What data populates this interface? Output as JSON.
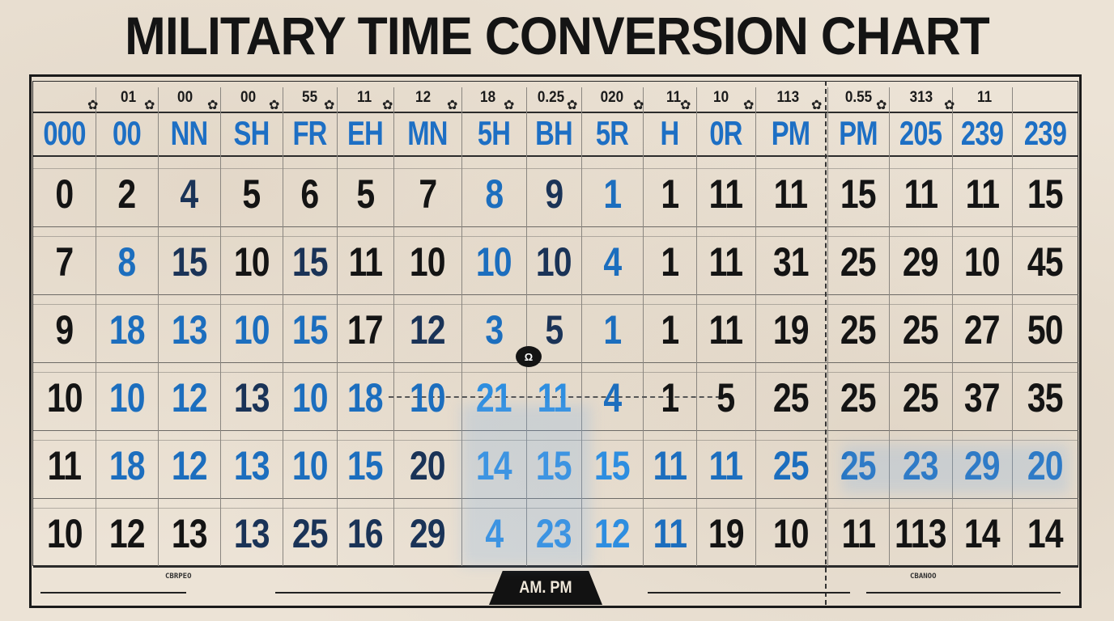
{
  "title": "MILITARY TIME CONVERSION CHART",
  "top_ticks": [
    "01",
    "00",
    "00",
    "55",
    "11",
    "12",
    "18",
    "0.25",
    "020",
    "11",
    "10",
    "113",
    "0.55",
    "313",
    "11"
  ],
  "headers": [
    "000",
    "00",
    "NN",
    "SH",
    "FR",
    "EH",
    "MN",
    "5H",
    "BH",
    "5R",
    "H",
    "0R",
    "PM",
    "PM",
    "205",
    "239",
    "239"
  ],
  "rows": [
    [
      "0",
      "2",
      "4",
      "5",
      "6",
      "5",
      "7",
      "8",
      "9",
      "1",
      "1",
      "11",
      "11",
      "15",
      "11",
      "11",
      "15"
    ],
    [
      "7",
      "8",
      "15",
      "10",
      "15",
      "11",
      "10",
      "10",
      "10",
      "4",
      "1",
      "11",
      "31",
      "25",
      "29",
      "10",
      "45"
    ],
    [
      "9",
      "18",
      "13",
      "10",
      "15",
      "17",
      "12",
      "3",
      "5",
      "1",
      "1",
      "11",
      "19",
      "25",
      "25",
      "27",
      "50"
    ],
    [
      "10",
      "10",
      "12",
      "13",
      "10",
      "18",
      "10",
      "21",
      "11",
      "4",
      "1",
      "5",
      "25",
      "25",
      "25",
      "37",
      "35"
    ],
    [
      "11",
      "18",
      "12",
      "13",
      "10",
      "15",
      "20",
      "14",
      "15",
      "15",
      "11",
      "11",
      "25",
      "25",
      "23",
      "29",
      "20"
    ],
    [
      "10",
      "12",
      "13",
      "13",
      "25",
      "16",
      "29",
      "4",
      "23",
      "12",
      "11",
      "19",
      "10",
      "11",
      "113",
      "14",
      "14"
    ]
  ],
  "row_colors": [
    [
      "black",
      "black",
      "navy",
      "black",
      "black",
      "black",
      "black",
      "blue",
      "navy",
      "blue",
      "black",
      "black",
      "black",
      "black",
      "black",
      "black",
      "black"
    ],
    [
      "black",
      "blue",
      "navy",
      "black",
      "navy",
      "black",
      "black",
      "blue",
      "navy",
      "blue",
      "black",
      "black",
      "black",
      "black",
      "black",
      "black",
      "black"
    ],
    [
      "black",
      "blue",
      "blue",
      "blue",
      "blue",
      "black",
      "navy",
      "blue",
      "navy",
      "blue",
      "black",
      "black",
      "black",
      "black",
      "black",
      "black",
      "black"
    ],
    [
      "black",
      "blue",
      "blue",
      "navy",
      "blue",
      "blue",
      "blue",
      "light",
      "light",
      "blue",
      "black",
      "black",
      "black",
      "black",
      "black",
      "black",
      "black"
    ],
    [
      "black",
      "blue",
      "blue",
      "blue",
      "blue",
      "blue",
      "navy",
      "light",
      "light",
      "light",
      "blue",
      "blue",
      "blue",
      "blue",
      "blue",
      "blue",
      "blue"
    ],
    [
      "black",
      "black",
      "black",
      "navy",
      "navy",
      "navy",
      "navy",
      "light",
      "light",
      "light",
      "blue",
      "black",
      "black",
      "black",
      "black",
      "black",
      "black"
    ]
  ],
  "footer_left": "CBRPEO",
  "footer_right": "CBANOO",
  "ampm_label": "AM. PM",
  "marker_glyph": "Ω",
  "colors": {
    "background": "#ece3d6",
    "ink": "#141414",
    "blue": "#1c6ebe",
    "navy": "#1a3357",
    "light_blue": "#2e8ee0"
  }
}
